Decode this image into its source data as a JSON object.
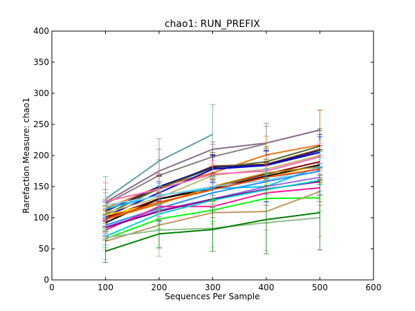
{
  "chart_data": {
    "type": "line",
    "title": "chao1: RUN_PREFIX",
    "xlabel": "Sequences Per Sample",
    "ylabel": "Rarefaction Measure: chao1",
    "xlim": [
      0,
      600
    ],
    "ylim": [
      0,
      400
    ],
    "xticks": [
      0,
      100,
      200,
      300,
      400,
      500,
      600
    ],
    "yticks": [
      0,
      50,
      100,
      150,
      200,
      250,
      300,
      350,
      400
    ],
    "grid": false,
    "legend": "none",
    "x": [
      100,
      200,
      300,
      400,
      500
    ],
    "series": [
      {
        "color": "#5f9ea0",
        "values": [
          130,
          191,
          234,
          null,
          null
        ],
        "err": [
          36,
          36,
          48,
          null,
          null
        ]
      },
      {
        "color": "#8b6b8b",
        "values": [
          125,
          175,
          210,
          220,
          241
        ],
        "err": [
          20,
          35,
          12,
          32,
          32
        ]
      },
      {
        "color": "#808080",
        "values": [
          122,
          168,
          198,
          219,
          null
        ],
        "err": [
          18,
          25,
          20,
          28,
          null
        ]
      },
      {
        "color": "#e87511",
        "values": [
          115,
          150,
          172,
          201,
          217
        ],
        "err": [
          15,
          20,
          25,
          30,
          56
        ]
      },
      {
        "color": "#8b4513",
        "values": [
          112,
          146,
          183,
          186,
          210
        ],
        "err": [
          16,
          20,
          22,
          25,
          30
        ]
      },
      {
        "color": "#556b2f",
        "values": [
          105,
          147,
          180,
          190,
          215
        ],
        "err": [
          14,
          20,
          22,
          24,
          28
        ]
      },
      {
        "color": "#191970",
        "values": [
          110,
          150,
          181,
          185,
          208
        ],
        "err": [
          15,
          18,
          20,
          22,
          26
        ]
      },
      {
        "color": "#0000cd",
        "values": [
          102,
          140,
          178,
          184,
          205
        ],
        "err": [
          16,
          18,
          22,
          24,
          25
        ]
      },
      {
        "color": "#bdb76b",
        "values": [
          108,
          132,
          168,
          178,
          200
        ],
        "err": [
          12,
          16,
          18,
          22,
          24
        ]
      },
      {
        "color": "#ff69b4",
        "values": [
          126,
          146,
          170,
          175,
          198
        ],
        "err": [
          30,
          25,
          22,
          24,
          22
        ]
      },
      {
        "color": "#8b0000",
        "values": [
          100,
          130,
          150,
          170,
          190
        ],
        "err": [
          14,
          18,
          22,
          24,
          26
        ]
      },
      {
        "color": "#ffd700",
        "values": [
          104,
          124,
          145,
          166,
          184
        ],
        "err": [
          14,
          18,
          20,
          22,
          24
        ]
      },
      {
        "color": "#000000",
        "values": [
          92,
          130,
          147,
          167,
          185
        ],
        "err": [
          14,
          18,
          20,
          22,
          24
        ]
      },
      {
        "color": "#b8860b",
        "values": [
          97,
          122,
          150,
          172,
          182
        ],
        "err": [
          14,
          16,
          20,
          22,
          24
        ]
      },
      {
        "color": "#00bfff",
        "values": [
          114,
          136,
          147,
          150,
          182
        ],
        "err": [
          14,
          16,
          18,
          20,
          24
        ]
      },
      {
        "color": "#87ceeb",
        "values": [
          120,
          135,
          150,
          160,
          180
        ],
        "err": [
          14,
          16,
          18,
          20,
          22
        ]
      },
      {
        "color": "#ff4500",
        "values": [
          98,
          125,
          145,
          165,
          178
        ],
        "err": [
          14,
          16,
          18,
          20,
          22
        ]
      },
      {
        "color": "#1e90ff",
        "values": [
          88,
          115,
          140,
          158,
          175
        ],
        "err": [
          14,
          16,
          18,
          20,
          22
        ]
      },
      {
        "color": "#9370db",
        "values": [
          85,
          112,
          130,
          150,
          165
        ],
        "err": [
          14,
          16,
          18,
          20,
          22
        ]
      },
      {
        "color": "#ff1493",
        "values": [
          80,
          118,
          118,
          140,
          148
        ],
        "err": [
          14,
          16,
          18,
          20,
          22
        ]
      },
      {
        "color": "#8b008b",
        "values": [
          84,
          110,
          130,
          146,
          158
        ],
        "err": [
          14,
          16,
          18,
          20,
          22
        ]
      },
      {
        "color": "#00ced1",
        "values": [
          70,
          106,
          128,
          145,
          160
        ],
        "err": [
          14,
          16,
          18,
          20,
          22
        ]
      },
      {
        "color": "#00ff00",
        "values": [
          66,
          98,
          112,
          131,
          132
        ],
        "err": [
          14,
          16,
          18,
          40,
          22
        ]
      },
      {
        "color": "#c0965b",
        "values": [
          62,
          88,
          108,
          110,
          142
        ],
        "err": [
          14,
          50,
          18,
          30,
          22
        ]
      },
      {
        "color": "#8fbc8f",
        "values": [
          68,
          80,
          83,
          92,
          100
        ],
        "err": [
          35,
          30,
          30,
          45,
          30
        ]
      },
      {
        "color": "#008000",
        "values": [
          46,
          74,
          81,
          97,
          108
        ],
        "err": [
          18,
          22,
          35,
          55,
          60
        ]
      }
    ]
  }
}
